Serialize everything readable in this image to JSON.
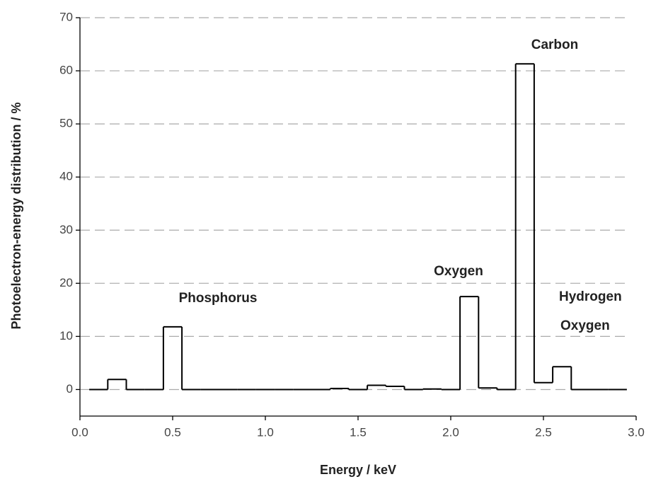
{
  "chart_data": {
    "type": "histogram",
    "xlabel": "Energy / keV",
    "ylabel": "Photoelectron-energy distribution / %",
    "bins": [
      0.05,
      0.15,
      0.25,
      0.35,
      0.45,
      0.55,
      0.65,
      0.75,
      0.85,
      0.95,
      1.05,
      1.15,
      1.25,
      1.35,
      1.45,
      1.55,
      1.65,
      1.75,
      1.85,
      1.95,
      2.05,
      2.15,
      2.25,
      2.35,
      2.45,
      2.55,
      2.65,
      2.75,
      2.85,
      2.95
    ],
    "values": [
      0,
      1.9,
      0,
      0,
      11.8,
      0,
      0,
      0,
      0,
      0,
      0,
      0,
      0,
      0.2,
      0,
      0.8,
      0.6,
      0,
      0.1,
      0,
      17.5,
      0.3,
      0,
      61.3,
      1.3,
      4.3,
      0,
      0,
      0
    ],
    "color": "#000000",
    "xlim": [
      0,
      3
    ],
    "xticks": [
      {
        "value": 0,
        "label": "0.0"
      },
      0.5,
      {
        "value": 1,
        "label": "1.0"
      },
      1.5,
      {
        "value": 2,
        "label": "2.0"
      },
      2.5,
      {
        "value": 3,
        "label": "3.0"
      }
    ],
    "ylim": [
      -5,
      70
    ],
    "yticks": [
      0,
      10,
      20,
      30,
      40,
      50,
      60,
      70
    ],
    "grid": true,
    "annotations": [
      "Phosphorus",
      "Oxygen",
      "Carbon",
      "Hydrogen",
      "Oxygen"
    ]
  }
}
